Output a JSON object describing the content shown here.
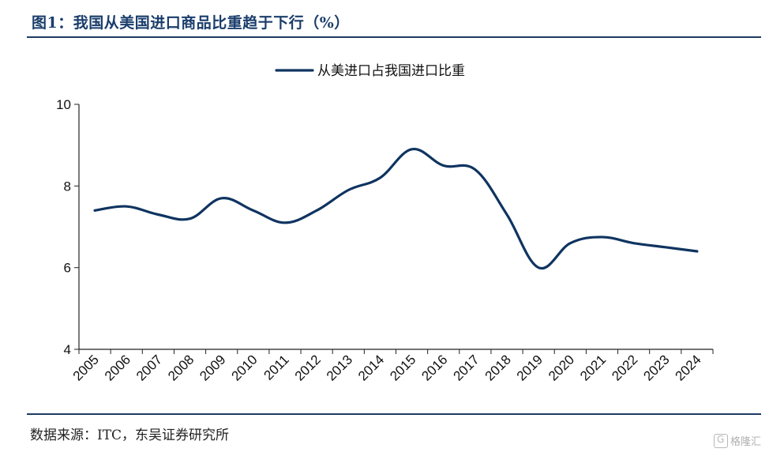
{
  "figure": {
    "title": "图1：我国从美国进口商品比重趋于下行（%）",
    "source": "数据来源：ITC，东吴证券研究所",
    "watermark": "格隆汇"
  },
  "colors": {
    "line": "#0f3460",
    "axis": "#222222",
    "title": "#1a3d6b"
  },
  "chart_data": {
    "type": "line",
    "title": "",
    "xlabel": "",
    "ylabel": "",
    "legend_position": "top-center",
    "grid": false,
    "ylim": [
      4,
      10
    ],
    "yticks": [
      4,
      6,
      8,
      10
    ],
    "categories": [
      "2005",
      "2006",
      "2007",
      "2008",
      "2009",
      "2010",
      "2011",
      "2012",
      "2013",
      "2014",
      "2015",
      "2016",
      "2017",
      "2018",
      "2019",
      "2020",
      "2021",
      "2022",
      "2023",
      "2024"
    ],
    "series": [
      {
        "name": "从美进口占我国进口比重",
        "values": [
          7.4,
          7.5,
          7.3,
          7.2,
          7.7,
          7.4,
          7.1,
          7.4,
          7.9,
          8.2,
          8.9,
          8.5,
          8.4,
          7.3,
          6.0,
          6.6,
          6.75,
          6.6,
          6.5,
          6.4
        ]
      }
    ]
  }
}
